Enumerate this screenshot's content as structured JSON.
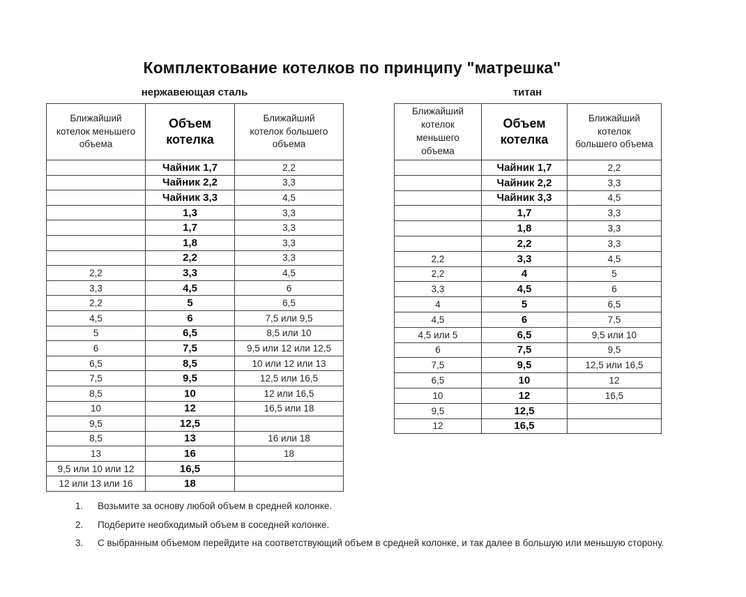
{
  "title": "Комплектование котелков по принципу \"матрешка\"",
  "tables": [
    {
      "caption": "нержавеющая сталь",
      "headers": [
        "Ближайший\nкотелок меньшего\nобъема",
        "Объем\nкотелка",
        "Ближайший\nкотелок большего\nобъема"
      ],
      "rows": [
        [
          "",
          "Чайник 1,7",
          "2,2"
        ],
        [
          "",
          "Чайник 2,2",
          "3,3"
        ],
        [
          "",
          "Чайник 3,3",
          "4,5"
        ],
        [
          "",
          "1,3",
          "3,3"
        ],
        [
          "",
          "1,7",
          "3,3"
        ],
        [
          "",
          "1,8",
          "3,3"
        ],
        [
          "",
          "2,2",
          "3,3"
        ],
        [
          "2,2",
          "3,3",
          "4,5"
        ],
        [
          "3,3",
          "4,5",
          "6"
        ],
        [
          "2,2",
          "5",
          "6,5"
        ],
        [
          "4,5",
          "6",
          "7,5 или 9,5"
        ],
        [
          "5",
          "6,5",
          "8,5 или 10"
        ],
        [
          "6",
          "7,5",
          "9,5 или 12 или 12,5"
        ],
        [
          "6,5",
          "8,5",
          "10 или 12 или 13"
        ],
        [
          "7,5",
          "9,5",
          "12,5 или 16,5"
        ],
        [
          "8,5",
          "10",
          "12 или 16,5"
        ],
        [
          "10",
          "12",
          "16,5 или 18"
        ],
        [
          "9,5",
          "12,5",
          ""
        ],
        [
          "8,5",
          "13",
          "16 или 18"
        ],
        [
          "13",
          "16",
          "18"
        ],
        [
          "9,5 или 10 или 12",
          "16,5",
          ""
        ],
        [
          "12 или 13 или 16",
          "18",
          ""
        ]
      ]
    },
    {
      "caption": "титан",
      "headers": [
        "Ближайший\nкотелок\nменьшего\nобъема",
        "Объем\nкотелка",
        "Ближайший\nкотелок\nбольшего объема"
      ],
      "rows": [
        [
          "",
          "Чайник 1,7",
          "2,2"
        ],
        [
          "",
          "Чайник 2,2",
          "3,3"
        ],
        [
          "",
          "Чайник 3,3",
          "4,5"
        ],
        [
          "",
          "1,7",
          "3,3"
        ],
        [
          "",
          "1,8",
          "3,3"
        ],
        [
          "",
          "2,2",
          "3,3"
        ],
        [
          "2,2",
          "3,3",
          "4,5"
        ],
        [
          "2,2",
          "4",
          "5"
        ],
        [
          "3,3",
          "4,5",
          "6"
        ],
        [
          "4",
          "5",
          "6,5"
        ],
        [
          "4,5",
          "6",
          "7,5"
        ],
        [
          "4,5 или 5",
          "6,5",
          "9,5 или 10"
        ],
        [
          "6",
          "7,5",
          "9,5"
        ],
        [
          "7,5",
          "9,5",
          "12,5 или 16,5"
        ],
        [
          "6,5",
          "10",
          "12"
        ],
        [
          "10",
          "12",
          "16,5"
        ],
        [
          "9,5",
          "12,5",
          ""
        ],
        [
          "12",
          "16,5",
          ""
        ]
      ]
    }
  ],
  "notes": [
    {
      "num": "1.",
      "text": "Возьмите за основу любой объем в средней колонке."
    },
    {
      "num": "2.",
      "text": "Подберите необходимый объем в соседней колонке."
    },
    {
      "num": "3.",
      "text": "С выбранным объемом перейдите на соответствующий объем в средней колонке, и так далее в большую или меньшую сторону."
    }
  ]
}
